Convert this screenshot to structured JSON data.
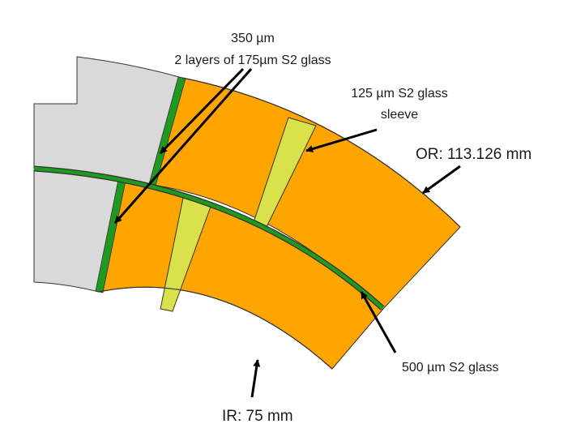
{
  "diagram": {
    "labels": {
      "insulation_line1": "350 µm",
      "insulation_line2": "2 layers of 175µm  S2 glass",
      "sleeve_line1": "125 µm S2 glass",
      "sleeve_line2": "sleeve",
      "outer_radius": "OR: 113.126 mm",
      "inner_radius": "IR: 75 mm",
      "midplane_layer": "500 µm S2 glass"
    },
    "colors": {
      "conductor_block": "#FFA500",
      "pole_region": "#D9D9D9",
      "s2_glass_insulation": "#1F9A1F",
      "wedge": "#D9E14B",
      "outline": "#333333",
      "arrow": "#000000"
    }
  }
}
